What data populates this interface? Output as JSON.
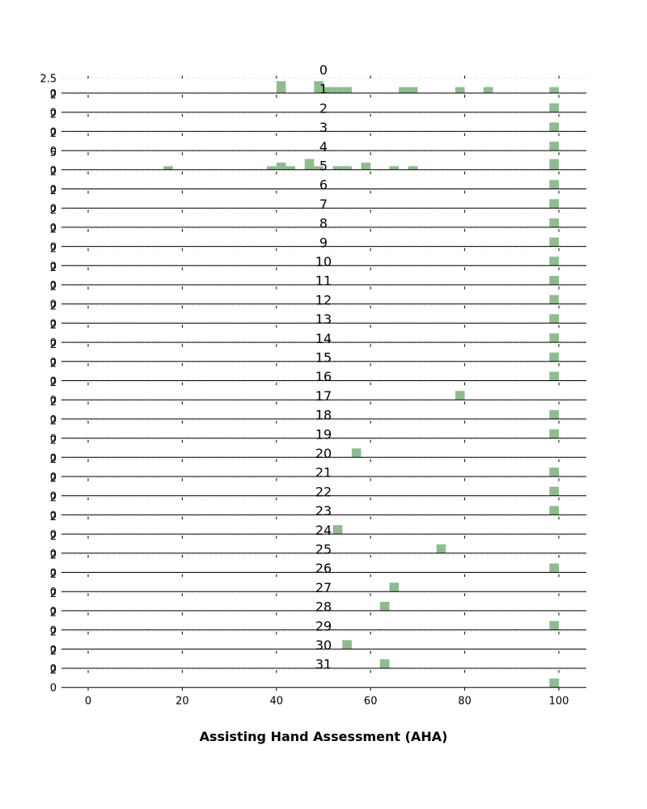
{
  "chart_data": {
    "type": "bar",
    "xlabel": "Assisting Hand Assessment (AHA)",
    "xlim": [
      -5,
      105
    ],
    "xticks": [
      0,
      20,
      40,
      60,
      80,
      100
    ],
    "bar_width": 2,
    "bar_color": "#8fbc8f",
    "grid": "horizontal dashed",
    "panels": [
      {
        "title": "0",
        "ylim": [
          0,
          3
        ],
        "yticks": [
          0,
          2.5
        ],
        "bars": [
          {
            "x": 41,
            "y": 2
          },
          {
            "x": 49,
            "y": 2
          },
          {
            "x": 51,
            "y": 1
          },
          {
            "x": 53,
            "y": 1
          },
          {
            "x": 55,
            "y": 1
          },
          {
            "x": 67,
            "y": 1
          },
          {
            "x": 69,
            "y": 1
          },
          {
            "x": 79,
            "y": 1
          },
          {
            "x": 85,
            "y": 1
          },
          {
            "x": 99,
            "y": 1
          }
        ]
      },
      {
        "title": "1",
        "ylim": [
          0,
          2
        ],
        "yticks": [
          0,
          2
        ],
        "bars": [
          {
            "x": 99,
            "y": 1
          }
        ]
      },
      {
        "title": "2",
        "ylim": [
          0,
          2
        ],
        "yticks": [
          0,
          2
        ],
        "bars": [
          {
            "x": 99,
            "y": 1
          }
        ]
      },
      {
        "title": "3",
        "ylim": [
          0,
          2
        ],
        "yticks": [
          0,
          2
        ],
        "bars": [
          {
            "x": 99,
            "y": 1
          }
        ]
      },
      {
        "title": "4",
        "ylim": [
          0,
          5
        ],
        "yticks": [
          0,
          5
        ],
        "bars": [
          {
            "x": 17,
            "y": 1
          },
          {
            "x": 39,
            "y": 1
          },
          {
            "x": 41,
            "y": 2
          },
          {
            "x": 43,
            "y": 1
          },
          {
            "x": 47,
            "y": 3
          },
          {
            "x": 49,
            "y": 1
          },
          {
            "x": 53,
            "y": 1
          },
          {
            "x": 55,
            "y": 1
          },
          {
            "x": 59,
            "y": 2
          },
          {
            "x": 65,
            "y": 1
          },
          {
            "x": 69,
            "y": 1
          },
          {
            "x": 99,
            "y": 3
          }
        ]
      },
      {
        "title": "5",
        "ylim": [
          0,
          2
        ],
        "yticks": [
          0,
          2
        ],
        "bars": [
          {
            "x": 99,
            "y": 1
          }
        ]
      },
      {
        "title": "6",
        "ylim": [
          0,
          2
        ],
        "yticks": [
          0,
          2
        ],
        "bars": [
          {
            "x": 99,
            "y": 1
          }
        ]
      },
      {
        "title": "7",
        "ylim": [
          0,
          2
        ],
        "yticks": [
          0,
          2
        ],
        "bars": [
          {
            "x": 99,
            "y": 1
          }
        ]
      },
      {
        "title": "8",
        "ylim": [
          0,
          2
        ],
        "yticks": [
          0,
          2
        ],
        "bars": [
          {
            "x": 99,
            "y": 1
          }
        ]
      },
      {
        "title": "9",
        "ylim": [
          0,
          2
        ],
        "yticks": [
          0,
          2
        ],
        "bars": [
          {
            "x": 99,
            "y": 1
          }
        ]
      },
      {
        "title": "10",
        "ylim": [
          0,
          2
        ],
        "yticks": [
          0,
          2
        ],
        "bars": [
          {
            "x": 99,
            "y": 1
          }
        ]
      },
      {
        "title": "11",
        "ylim": [
          0,
          2
        ],
        "yticks": [
          0,
          2
        ],
        "bars": [
          {
            "x": 99,
            "y": 1
          }
        ]
      },
      {
        "title": "12",
        "ylim": [
          0,
          2
        ],
        "yticks": [
          0,
          2
        ],
        "bars": [
          {
            "x": 99,
            "y": 1
          }
        ]
      },
      {
        "title": "13",
        "ylim": [
          0,
          2
        ],
        "yticks": [
          0,
          2
        ],
        "bars": [
          {
            "x": 99,
            "y": 1
          }
        ]
      },
      {
        "title": "14",
        "ylim": [
          0,
          2
        ],
        "yticks": [
          0,
          2
        ],
        "bars": [
          {
            "x": 99,
            "y": 1
          }
        ]
      },
      {
        "title": "15",
        "ylim": [
          0,
          2
        ],
        "yticks": [
          0,
          2
        ],
        "bars": [
          {
            "x": 99,
            "y": 1
          }
        ]
      },
      {
        "title": "16",
        "ylim": [
          0,
          2
        ],
        "yticks": [
          0,
          2
        ],
        "bars": [
          {
            "x": 79,
            "y": 1
          }
        ]
      },
      {
        "title": "17",
        "ylim": [
          0,
          2
        ],
        "yticks": [
          0,
          2
        ],
        "bars": [
          {
            "x": 99,
            "y": 1
          }
        ]
      },
      {
        "title": "18",
        "ylim": [
          0,
          2
        ],
        "yticks": [
          0,
          2
        ],
        "bars": [
          {
            "x": 99,
            "y": 1
          }
        ]
      },
      {
        "title": "19",
        "ylim": [
          0,
          2
        ],
        "yticks": [
          0,
          2
        ],
        "bars": [
          {
            "x": 57,
            "y": 1
          }
        ]
      },
      {
        "title": "20",
        "ylim": [
          0,
          2
        ],
        "yticks": [
          0,
          2
        ],
        "bars": [
          {
            "x": 99,
            "y": 1
          }
        ]
      },
      {
        "title": "21",
        "ylim": [
          0,
          2
        ],
        "yticks": [
          0,
          2
        ],
        "bars": [
          {
            "x": 99,
            "y": 1
          }
        ]
      },
      {
        "title": "22",
        "ylim": [
          0,
          2
        ],
        "yticks": [
          0,
          2
        ],
        "bars": [
          {
            "x": 99,
            "y": 1
          }
        ]
      },
      {
        "title": "23",
        "ylim": [
          0,
          2
        ],
        "yticks": [
          0,
          2
        ],
        "bars": [
          {
            "x": 53,
            "y": 1
          }
        ]
      },
      {
        "title": "24",
        "ylim": [
          0,
          2
        ],
        "yticks": [
          0,
          2
        ],
        "bars": [
          {
            "x": 75,
            "y": 1
          }
        ]
      },
      {
        "title": "25",
        "ylim": [
          0,
          2
        ],
        "yticks": [
          0,
          2
        ],
        "bars": [
          {
            "x": 99,
            "y": 1
          }
        ]
      },
      {
        "title": "26",
        "ylim": [
          0,
          2
        ],
        "yticks": [
          0,
          2
        ],
        "bars": [
          {
            "x": 65,
            "y": 1
          }
        ]
      },
      {
        "title": "27",
        "ylim": [
          0,
          2
        ],
        "yticks": [
          0,
          2
        ],
        "bars": [
          {
            "x": 63,
            "y": 1
          }
        ]
      },
      {
        "title": "28",
        "ylim": [
          0,
          2
        ],
        "yticks": [
          0,
          2
        ],
        "bars": [
          {
            "x": 99,
            "y": 1
          }
        ]
      },
      {
        "title": "29",
        "ylim": [
          0,
          2
        ],
        "yticks": [
          0,
          2
        ],
        "bars": [
          {
            "x": 55,
            "y": 1
          }
        ]
      },
      {
        "title": "30",
        "ylim": [
          0,
          2
        ],
        "yticks": [
          0,
          2
        ],
        "bars": [
          {
            "x": 63,
            "y": 1
          }
        ]
      },
      {
        "title": "31",
        "ylim": [
          0,
          2
        ],
        "yticks": [
          0,
          2
        ],
        "bars": [
          {
            "x": 99,
            "y": 1
          }
        ]
      }
    ]
  }
}
